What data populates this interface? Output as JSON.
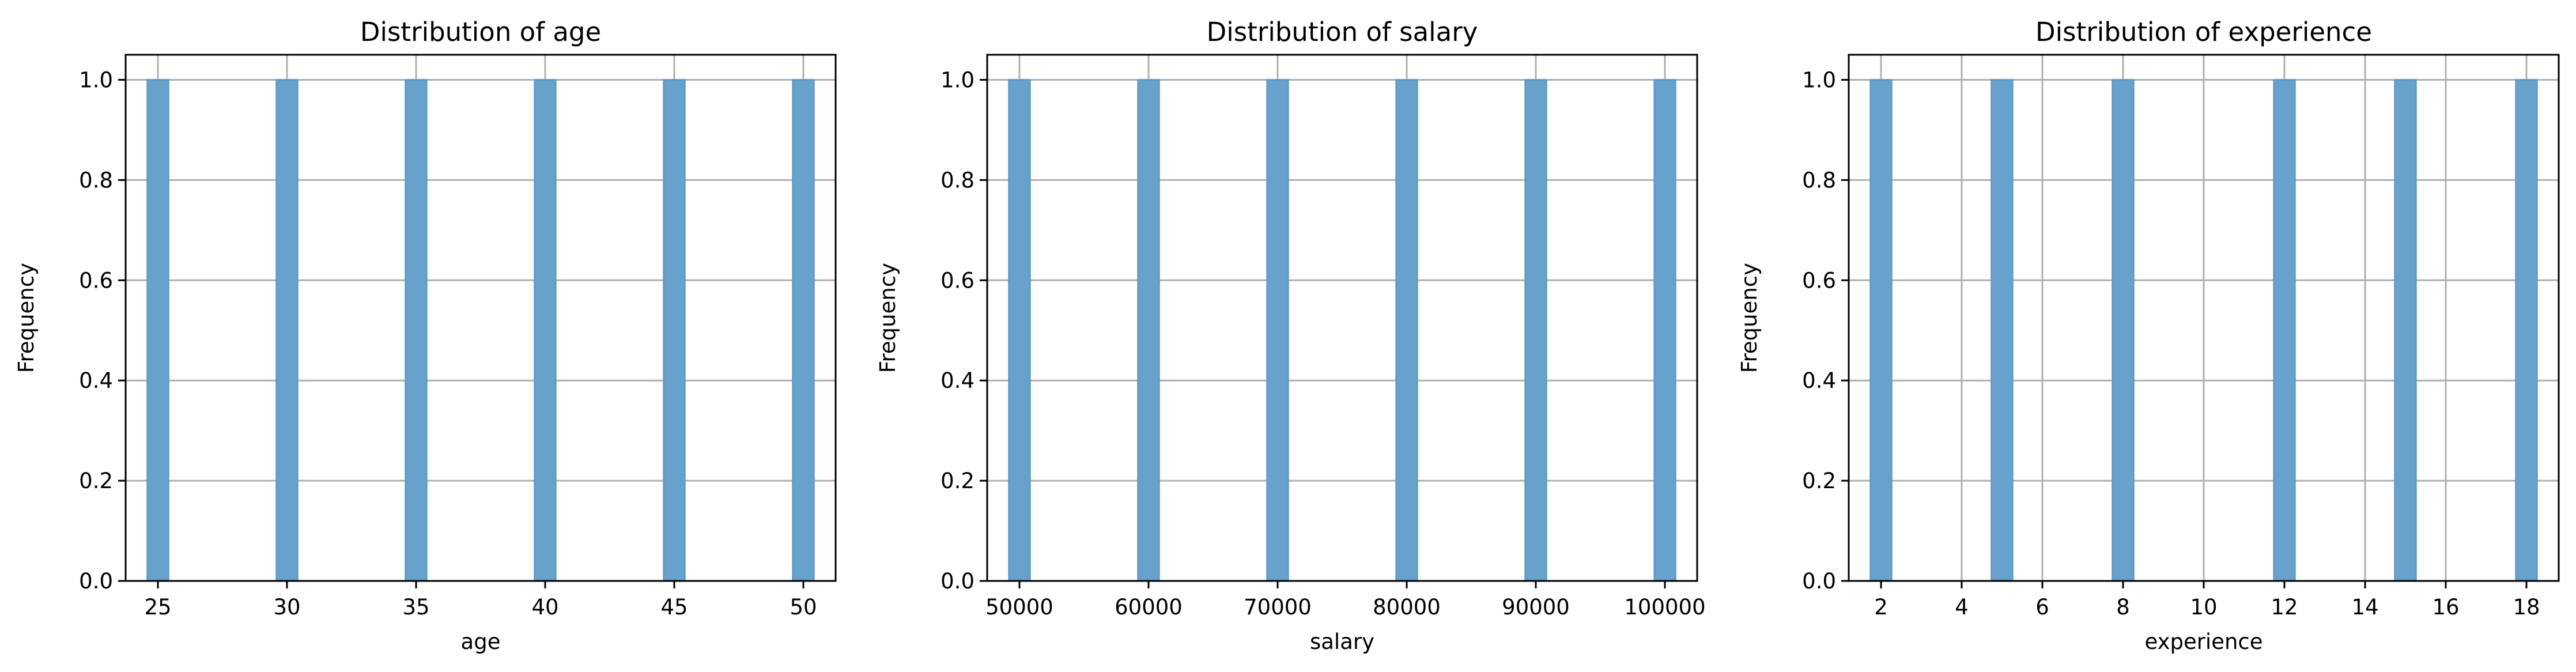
{
  "colors": {
    "bar": "#66a2cc",
    "bar_edge": "#5b95c2",
    "grid": "#b0b0b0",
    "spine": "#000000"
  },
  "chart_data": [
    {
      "type": "bar",
      "title": "Distribution of age",
      "xlabel": "age",
      "ylabel": "Frequency",
      "xlim": [
        23.75,
        51.25
      ],
      "ylim": [
        0,
        1.05
      ],
      "grid": true,
      "bin_width": 0.833,
      "x": [
        25,
        30,
        35,
        40,
        45,
        50
      ],
      "values": [
        1,
        1,
        1,
        1,
        1,
        1
      ],
      "xticks": [
        25,
        30,
        35,
        40,
        45,
        50
      ],
      "xtick_labels": [
        "25",
        "30",
        "35",
        "40",
        "45",
        "50"
      ],
      "yticks": [
        0,
        0.2,
        0.4,
        0.6,
        0.8,
        1.0
      ],
      "ytick_labels": [
        "0.0",
        "0.2",
        "0.4",
        "0.6",
        "0.8",
        "1.0"
      ]
    },
    {
      "type": "bar",
      "title": "Distribution of salary",
      "xlabel": "salary",
      "ylabel": "Frequency",
      "xlim": [
        47500,
        102500
      ],
      "ylim": [
        0,
        1.05
      ],
      "grid": true,
      "bin_width": 1666.7,
      "x": [
        50000,
        60000,
        70000,
        80000,
        90000,
        100000
      ],
      "values": [
        1,
        1,
        1,
        1,
        1,
        1
      ],
      "xticks": [
        50000,
        60000,
        70000,
        80000,
        90000,
        100000
      ],
      "xtick_labels": [
        "50000",
        "60000",
        "70000",
        "80000",
        "90000",
        "100000"
      ],
      "yticks": [
        0,
        0.2,
        0.4,
        0.6,
        0.8,
        1.0
      ],
      "ytick_labels": [
        "0.0",
        "0.2",
        "0.4",
        "0.6",
        "0.8",
        "1.0"
      ]
    },
    {
      "type": "bar",
      "title": "Distribution of experience",
      "xlabel": "experience",
      "ylabel": "Frequency",
      "xlim": [
        1.2,
        18.8
      ],
      "ylim": [
        0,
        1.05
      ],
      "grid": true,
      "bin_width": 0.533,
      "x": [
        2,
        5,
        8,
        12,
        15,
        18
      ],
      "values": [
        1,
        1,
        1,
        1,
        1,
        1
      ],
      "xticks": [
        2,
        4,
        6,
        8,
        10,
        12,
        14,
        16,
        18
      ],
      "xtick_labels": [
        "2",
        "4",
        "6",
        "8",
        "10",
        "12",
        "14",
        "16",
        "18"
      ],
      "yticks": [
        0,
        0.2,
        0.4,
        0.6,
        0.8,
        1.0
      ],
      "ytick_labels": [
        "0.0",
        "0.2",
        "0.4",
        "0.6",
        "0.8",
        "1.0"
      ]
    }
  ]
}
